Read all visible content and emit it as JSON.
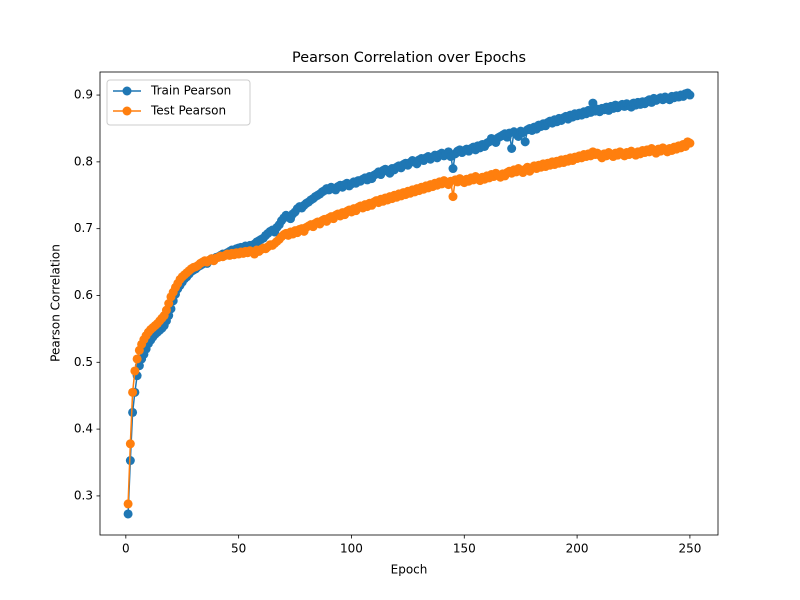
{
  "chart_data": {
    "type": "line",
    "title": "Pearson Correlation over Epochs",
    "xlabel": "Epoch",
    "ylabel": "Pearson Correlation",
    "x": [
      1,
      2,
      3,
      4,
      5,
      6,
      7,
      8,
      9,
      10,
      11,
      12,
      13,
      14,
      15,
      16,
      17,
      18,
      19,
      20,
      21,
      22,
      23,
      24,
      25,
      26,
      27,
      28,
      29,
      30,
      31,
      32,
      33,
      34,
      35,
      36,
      37,
      38,
      39,
      40,
      41,
      42,
      43,
      44,
      45,
      46,
      47,
      48,
      49,
      50,
      51,
      52,
      53,
      54,
      55,
      56,
      57,
      58,
      59,
      60,
      61,
      62,
      63,
      64,
      65,
      66,
      67,
      68,
      69,
      70,
      71,
      72,
      73,
      74,
      75,
      76,
      77,
      78,
      79,
      80,
      81,
      82,
      83,
      84,
      85,
      86,
      87,
      88,
      89,
      90,
      91,
      92,
      93,
      94,
      95,
      96,
      97,
      98,
      99,
      100,
      101,
      102,
      103,
      104,
      105,
      106,
      107,
      108,
      109,
      110,
      111,
      112,
      113,
      114,
      115,
      116,
      117,
      118,
      119,
      120,
      121,
      122,
      123,
      124,
      125,
      126,
      127,
      128,
      129,
      130,
      131,
      132,
      133,
      134,
      135,
      136,
      137,
      138,
      139,
      140,
      141,
      142,
      143,
      144,
      145,
      146,
      147,
      148,
      149,
      150,
      151,
      152,
      153,
      154,
      155,
      156,
      157,
      158,
      159,
      160,
      161,
      162,
      163,
      164,
      165,
      166,
      167,
      168,
      169,
      170,
      171,
      172,
      173,
      174,
      175,
      176,
      177,
      178,
      179,
      180,
      181,
      182,
      183,
      184,
      185,
      186,
      187,
      188,
      189,
      190,
      191,
      192,
      193,
      194,
      195,
      196,
      197,
      198,
      199,
      200,
      201,
      202,
      203,
      204,
      205,
      206,
      207,
      208,
      209,
      210,
      211,
      212,
      213,
      214,
      215,
      216,
      217,
      218,
      219,
      220,
      221,
      222,
      223,
      224,
      225,
      226,
      227,
      228,
      229,
      230,
      231,
      232,
      233,
      234,
      235,
      236,
      237,
      238,
      239,
      240,
      241,
      242,
      243,
      244,
      245,
      246,
      247,
      248,
      249,
      250
    ],
    "series": [
      {
        "name": "Train Pearson",
        "color": "#1f77b4",
        "values": [
          0.273,
          0.353,
          0.425,
          0.455,
          0.48,
          0.495,
          0.505,
          0.512,
          0.52,
          0.528,
          0.533,
          0.538,
          0.542,
          0.545,
          0.548,
          0.551,
          0.555,
          0.562,
          0.57,
          0.58,
          0.592,
          0.602,
          0.61,
          0.615,
          0.62,
          0.625,
          0.628,
          0.632,
          0.636,
          0.638,
          0.64,
          0.643,
          0.645,
          0.647,
          0.65,
          0.648,
          0.652,
          0.655,
          0.654,
          0.657,
          0.658,
          0.66,
          0.662,
          0.661,
          0.664,
          0.666,
          0.668,
          0.667,
          0.67,
          0.671,
          0.672,
          0.67,
          0.674,
          0.673,
          0.675,
          0.672,
          0.677,
          0.68,
          0.682,
          0.684,
          0.686,
          0.69,
          0.693,
          0.696,
          0.698,
          0.695,
          0.702,
          0.706,
          0.712,
          0.716,
          0.72,
          0.718,
          0.715,
          0.722,
          0.725,
          0.73,
          0.733,
          0.731,
          0.735,
          0.738,
          0.74,
          0.743,
          0.745,
          0.748,
          0.75,
          0.752,
          0.755,
          0.757,
          0.76,
          0.758,
          0.762,
          0.76,
          0.758,
          0.763,
          0.765,
          0.762,
          0.766,
          0.768,
          0.764,
          0.767,
          0.77,
          0.768,
          0.772,
          0.771,
          0.774,
          0.776,
          0.773,
          0.778,
          0.775,
          0.78,
          0.782,
          0.785,
          0.781,
          0.787,
          0.789,
          0.786,
          0.783,
          0.79,
          0.788,
          0.792,
          0.794,
          0.791,
          0.796,
          0.798,
          0.795,
          0.799,
          0.802,
          0.8,
          0.797,
          0.803,
          0.805,
          0.802,
          0.806,
          0.808,
          0.804,
          0.807,
          0.81,
          0.806,
          0.811,
          0.813,
          0.809,
          0.812,
          0.815,
          0.808,
          0.79,
          0.812,
          0.816,
          0.818,
          0.814,
          0.817,
          0.819,
          0.816,
          0.82,
          0.822,
          0.818,
          0.824,
          0.821,
          0.826,
          0.823,
          0.828,
          0.83,
          0.835,
          0.832,
          0.829,
          0.836,
          0.838,
          0.84,
          0.842,
          0.837,
          0.843,
          0.82,
          0.845,
          0.841,
          0.838,
          0.846,
          0.844,
          0.83,
          0.848,
          0.85,
          0.847,
          0.852,
          0.849,
          0.855,
          0.853,
          0.857,
          0.854,
          0.859,
          0.861,
          0.858,
          0.863,
          0.86,
          0.865,
          0.862,
          0.866,
          0.868,
          0.864,
          0.87,
          0.867,
          0.872,
          0.869,
          0.873,
          0.87,
          0.875,
          0.872,
          0.877,
          0.874,
          0.888,
          0.876,
          0.879,
          0.875,
          0.88,
          0.878,
          0.882,
          0.877,
          0.883,
          0.88,
          0.885,
          0.881,
          0.884,
          0.886,
          0.883,
          0.887,
          0.884,
          0.882,
          0.888,
          0.885,
          0.889,
          0.886,
          0.89,
          0.887,
          0.891,
          0.893,
          0.889,
          0.895,
          0.892,
          0.894,
          0.896,
          0.893,
          0.897,
          0.895,
          0.893,
          0.898,
          0.896,
          0.899,
          0.897,
          0.9,
          0.898,
          0.902,
          0.903,
          0.9
        ]
      },
      {
        "name": "Test Pearson",
        "color": "#ff7f0e",
        "values": [
          0.288,
          0.378,
          0.455,
          0.487,
          0.505,
          0.518,
          0.527,
          0.534,
          0.54,
          0.545,
          0.549,
          0.552,
          0.555,
          0.558,
          0.562,
          0.566,
          0.57,
          0.578,
          0.588,
          0.598,
          0.605,
          0.612,
          0.618,
          0.624,
          0.628,
          0.631,
          0.634,
          0.637,
          0.64,
          0.642,
          0.643,
          0.645,
          0.648,
          0.65,
          0.652,
          0.65,
          0.653,
          0.655,
          0.652,
          0.656,
          0.657,
          0.659,
          0.658,
          0.66,
          0.662,
          0.66,
          0.663,
          0.661,
          0.664,
          0.662,
          0.665,
          0.663,
          0.666,
          0.664,
          0.667,
          0.665,
          0.662,
          0.668,
          0.666,
          0.669,
          0.671,
          0.67,
          0.673,
          0.676,
          0.675,
          0.678,
          0.681,
          0.684,
          0.688,
          0.691,
          0.693,
          0.69,
          0.695,
          0.692,
          0.697,
          0.694,
          0.699,
          0.7,
          0.696,
          0.702,
          0.704,
          0.706,
          0.703,
          0.708,
          0.71,
          0.707,
          0.712,
          0.714,
          0.711,
          0.716,
          0.718,
          0.715,
          0.72,
          0.722,
          0.719,
          0.724,
          0.721,
          0.726,
          0.728,
          0.725,
          0.73,
          0.727,
          0.732,
          0.734,
          0.731,
          0.736,
          0.733,
          0.738,
          0.735,
          0.74,
          0.742,
          0.739,
          0.744,
          0.741,
          0.746,
          0.743,
          0.748,
          0.745,
          0.75,
          0.747,
          0.752,
          0.749,
          0.754,
          0.751,
          0.756,
          0.753,
          0.758,
          0.755,
          0.76,
          0.757,
          0.762,
          0.759,
          0.764,
          0.761,
          0.766,
          0.763,
          0.768,
          0.765,
          0.77,
          0.767,
          0.772,
          0.769,
          0.766,
          0.771,
          0.748,
          0.773,
          0.77,
          0.775,
          0.772,
          0.769,
          0.774,
          0.771,
          0.776,
          0.773,
          0.778,
          0.775,
          0.772,
          0.777,
          0.774,
          0.779,
          0.776,
          0.781,
          0.778,
          0.783,
          0.78,
          0.777,
          0.782,
          0.779,
          0.784,
          0.786,
          0.783,
          0.788,
          0.785,
          0.79,
          0.787,
          0.784,
          0.789,
          0.792,
          0.786,
          0.791,
          0.794,
          0.79,
          0.795,
          0.792,
          0.797,
          0.793,
          0.798,
          0.795,
          0.8,
          0.796,
          0.801,
          0.798,
          0.803,
          0.799,
          0.804,
          0.801,
          0.806,
          0.802,
          0.807,
          0.805,
          0.809,
          0.806,
          0.811,
          0.808,
          0.812,
          0.809,
          0.815,
          0.811,
          0.813,
          0.81,
          0.806,
          0.812,
          0.809,
          0.814,
          0.811,
          0.808,
          0.813,
          0.81,
          0.815,
          0.812,
          0.809,
          0.814,
          0.811,
          0.816,
          0.813,
          0.81,
          0.815,
          0.812,
          0.817,
          0.814,
          0.818,
          0.815,
          0.82,
          0.817,
          0.813,
          0.819,
          0.816,
          0.821,
          0.818,
          0.815,
          0.82,
          0.817,
          0.822,
          0.819,
          0.824,
          0.821,
          0.826,
          0.823,
          0.83,
          0.828
        ]
      }
    ],
    "xlim": [
      -11.45,
      262.45
    ],
    "ylim": [
      0.2415,
      0.9345
    ],
    "xticks": [
      0,
      50,
      100,
      150,
      200,
      250
    ],
    "yticks": [
      0.3,
      0.4,
      0.5,
      0.6,
      0.7,
      0.8,
      0.9
    ],
    "legend": "upper left",
    "grid": false
  }
}
